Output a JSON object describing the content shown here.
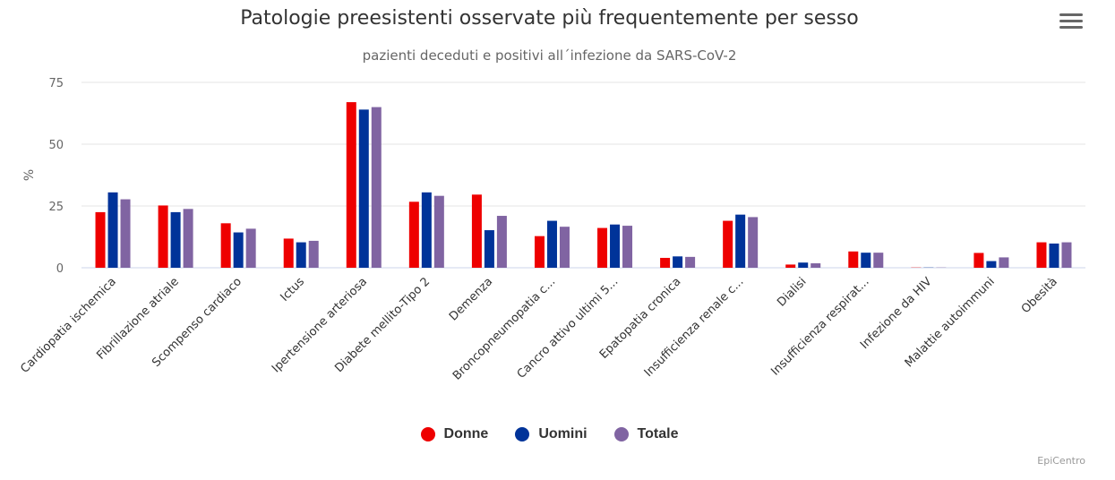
{
  "chart_data": {
    "type": "bar",
    "title": "Patologie preesistenti osservate più frequentemente per sesso",
    "subtitle": "pazienti deceduti e positivi all´infezione da SARS-CoV-2",
    "ylabel": "%",
    "ylim": [
      0,
      75
    ],
    "yticks": [
      0,
      25,
      50,
      75
    ],
    "grid": true,
    "legend_position": "bottom-center",
    "categories": [
      "Cardiopatia ischemica",
      "Fibrillazione atriale",
      "Scompenso cardiaco",
      "Ictus",
      "Ipertensione arteriosa",
      "Diabete mellito-Tipo 2",
      "Demenza",
      "Broncopneumopatia c...",
      "Cancro attivo ultimi 5...",
      "Epatopatia cronica",
      "Insufficienza renale c...",
      "Dialisi",
      "Insufficienza respirat...",
      "Infezione da HIV",
      "Malattie autoimmuni",
      "Obesità"
    ],
    "series": [
      {
        "name": "Donne",
        "color": "#ee0000",
        "values": [
          22.5,
          25.2,
          18.0,
          11.8,
          67.0,
          26.7,
          29.6,
          12.8,
          16.1,
          4.0,
          19.0,
          1.3,
          6.6,
          0.1,
          6.0,
          10.3
        ]
      },
      {
        "name": "Uomini",
        "color": "#003399",
        "values": [
          30.5,
          22.5,
          14.3,
          10.3,
          64.0,
          30.5,
          15.2,
          19.0,
          17.5,
          4.6,
          21.5,
          2.1,
          6.1,
          0.1,
          2.7,
          9.8
        ]
      },
      {
        "name": "Totale",
        "color": "#8064a2",
        "values": [
          27.7,
          23.8,
          15.8,
          10.9,
          65.0,
          29.1,
          21.0,
          16.6,
          17.0,
          4.4,
          20.5,
          1.8,
          6.1,
          0.1,
          4.2,
          10.3
        ]
      }
    ]
  },
  "credits": "EpiCentro",
  "menu_icon": "hamburger-menu-icon"
}
